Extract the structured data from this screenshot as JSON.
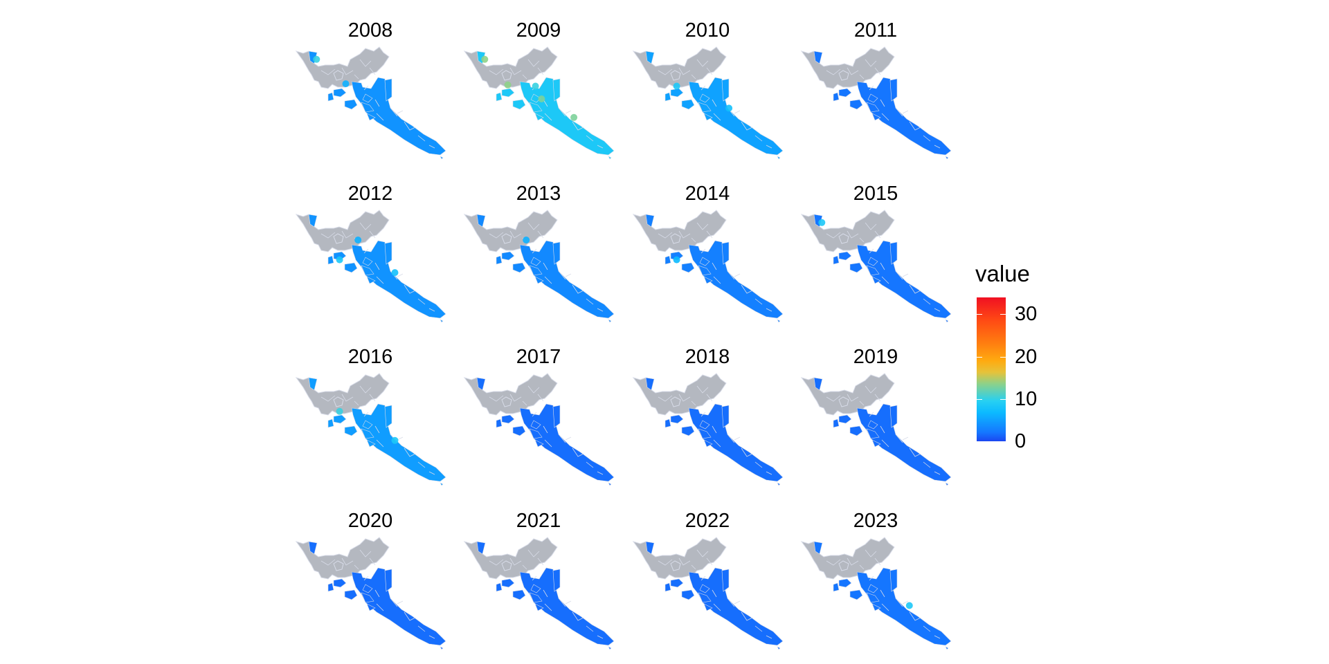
{
  "panels": [
    {
      "year": "2008",
      "level": 0.12,
      "hotspots": [
        [
          0.15,
          0.13,
          0.3
        ],
        [
          0.34,
          0.34,
          0.18
        ]
      ]
    },
    {
      "year": "2009",
      "level": 0.25,
      "hotspots": [
        [
          0.15,
          0.13,
          0.4
        ],
        [
          0.3,
          0.35,
          0.4
        ],
        [
          0.52,
          0.47,
          0.38
        ],
        [
          0.73,
          0.63,
          0.38
        ],
        [
          0.48,
          0.36,
          0.3
        ]
      ]
    },
    {
      "year": "2010",
      "level": 0.15,
      "hotspots": [
        [
          0.3,
          0.36,
          0.25
        ],
        [
          0.64,
          0.55,
          0.22
        ]
      ]
    },
    {
      "year": "2011",
      "level": 0.06,
      "hotspots": []
    },
    {
      "year": "2012",
      "level": 0.12,
      "hotspots": [
        [
          0.3,
          0.45,
          0.25
        ],
        [
          0.66,
          0.56,
          0.22
        ],
        [
          0.42,
          0.28,
          0.18
        ]
      ]
    },
    {
      "year": "2013",
      "level": 0.1,
      "hotspots": [
        [
          0.42,
          0.28,
          0.18
        ]
      ]
    },
    {
      "year": "2014",
      "level": 0.08,
      "hotspots": [
        [
          0.3,
          0.45,
          0.2
        ]
      ]
    },
    {
      "year": "2015",
      "level": 0.06,
      "hotspots": [
        [
          0.15,
          0.13,
          0.25
        ]
      ]
    },
    {
      "year": "2016",
      "level": 0.14,
      "hotspots": [
        [
          0.3,
          0.35,
          0.3
        ],
        [
          0.66,
          0.6,
          0.25
        ]
      ]
    },
    {
      "year": "2017",
      "level": 0.05,
      "hotspots": []
    },
    {
      "year": "2018",
      "level": 0.05,
      "hotspots": []
    },
    {
      "year": "2019",
      "level": 0.05,
      "hotspots": []
    },
    {
      "year": "2020",
      "level": 0.05,
      "hotspots": []
    },
    {
      "year": "2021",
      "level": 0.05,
      "hotspots": []
    },
    {
      "year": "2022",
      "level": 0.05,
      "hotspots": []
    },
    {
      "year": "2023",
      "level": 0.06,
      "hotspots": [
        [
          0.72,
          0.61,
          0.25
        ]
      ]
    }
  ],
  "legend": {
    "title": "value",
    "min": 0,
    "max": 34,
    "ticks": [
      {
        "value": 0,
        "label": "0"
      },
      {
        "value": 10,
        "label": "10"
      },
      {
        "value": 20,
        "label": "20"
      },
      {
        "value": 30,
        "label": "30"
      }
    ]
  },
  "colors": {
    "water": "#1a44ee",
    "land_gray": "#b4b8c0",
    "boundary": "#d8dce8",
    "scale_low": "#1b46f0",
    "scale_mid": "#25d0f5",
    "scale_high": "#f01022"
  }
}
